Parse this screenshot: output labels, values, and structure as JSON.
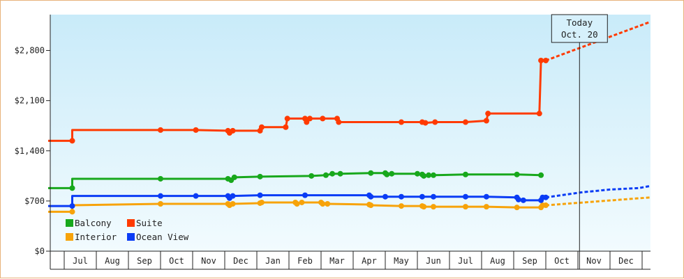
{
  "chart_data": {
    "type": "line",
    "title": "",
    "xlabel": "",
    "ylabel": "",
    "ylim": [
      0,
      3300
    ],
    "y_ticks": [
      0,
      700,
      1400,
      2100,
      2800
    ],
    "y_tick_labels": [
      "$0",
      "$700",
      "$1,400",
      "$2,100",
      "$2,800"
    ],
    "x_tick_labels": [
      "Jul",
      "Aug",
      "Sep",
      "Oct",
      "Nov",
      "Dec",
      "Jan",
      "Feb",
      "Mar",
      "Apr",
      "May",
      "Jun",
      "Jul",
      "Aug",
      "Sep",
      "Oct",
      "Nov",
      "Dec"
    ],
    "x_range_months": [
      0,
      19
    ],
    "grid": false,
    "background": "light-blue gradient",
    "legend_position": "bottom-left",
    "today_marker": {
      "line1": "Today",
      "line2": "Oct. 20",
      "x": 16.55
    },
    "series": [
      {
        "name": "Suite",
        "color": "#ff3a00",
        "points": [
          [
            0,
            1540
          ],
          [
            0.75,
            1540
          ],
          [
            0.75,
            1690
          ],
          [
            3.5,
            1690
          ],
          [
            4.6,
            1690
          ],
          [
            5.6,
            1680
          ],
          [
            5.65,
            1650
          ],
          [
            5.75,
            1680
          ],
          [
            6.6,
            1680
          ],
          [
            6.65,
            1730
          ],
          [
            7.4,
            1730
          ],
          [
            7.45,
            1850
          ],
          [
            8.0,
            1850
          ],
          [
            8.05,
            1800
          ],
          [
            8.15,
            1850
          ],
          [
            8.55,
            1850
          ],
          [
            9.0,
            1850
          ],
          [
            9.05,
            1800
          ],
          [
            11.0,
            1800
          ],
          [
            11.65,
            1800
          ],
          [
            11.75,
            1790
          ],
          [
            12.05,
            1800
          ],
          [
            13.0,
            1800
          ],
          [
            13.65,
            1820
          ],
          [
            13.7,
            1920
          ],
          [
            15.3,
            1920
          ],
          [
            15.35,
            2660
          ],
          [
            15.5,
            2660
          ]
        ],
        "projection": [
          [
            15.5,
            2660
          ],
          [
            19,
            3200
          ]
        ]
      },
      {
        "name": "Balcony",
        "color": "#18a81c",
        "points": [
          [
            0,
            880
          ],
          [
            0.75,
            880
          ],
          [
            0.75,
            1010
          ],
          [
            3.5,
            1010
          ],
          [
            5.6,
            1010
          ],
          [
            5.7,
            990
          ],
          [
            5.8,
            1030
          ],
          [
            6.6,
            1040
          ],
          [
            8.2,
            1050
          ],
          [
            8.65,
            1060
          ],
          [
            8.85,
            1080
          ],
          [
            9.1,
            1080
          ],
          [
            10.05,
            1090
          ],
          [
            10.5,
            1090
          ],
          [
            10.55,
            1070
          ],
          [
            10.7,
            1080
          ],
          [
            11.5,
            1080
          ],
          [
            11.65,
            1070
          ],
          [
            11.7,
            1050
          ],
          [
            11.85,
            1060
          ],
          [
            12.0,
            1060
          ],
          [
            13.0,
            1070
          ],
          [
            14.6,
            1070
          ],
          [
            15.35,
            1060
          ]
        ],
        "projection": []
      },
      {
        "name": "Interior",
        "color": "#f7a30a",
        "points": [
          [
            0,
            550
          ],
          [
            0.75,
            550
          ],
          [
            0.75,
            640
          ],
          [
            3.5,
            660
          ],
          [
            5.6,
            660
          ],
          [
            5.65,
            640
          ],
          [
            5.75,
            660
          ],
          [
            6.6,
            670
          ],
          [
            6.65,
            680
          ],
          [
            7.7,
            680
          ],
          [
            7.75,
            660
          ],
          [
            7.9,
            680
          ],
          [
            8.5,
            680
          ],
          [
            8.55,
            660
          ],
          [
            8.7,
            660
          ],
          [
            10.0,
            650
          ],
          [
            10.05,
            640
          ],
          [
            11.0,
            630
          ],
          [
            11.65,
            630
          ],
          [
            11.7,
            620
          ],
          [
            12.0,
            620
          ],
          [
            13.0,
            620
          ],
          [
            13.65,
            620
          ],
          [
            14.6,
            610
          ],
          [
            15.35,
            610
          ],
          [
            15.4,
            640
          ],
          [
            15.5,
            640
          ]
        ],
        "projection": [
          [
            15.5,
            640
          ],
          [
            19,
            750
          ]
        ]
      },
      {
        "name": "Ocean View",
        "color": "#0a3cf5",
        "points": [
          [
            0,
            630
          ],
          [
            0.75,
            630
          ],
          [
            0.75,
            770
          ],
          [
            3.5,
            770
          ],
          [
            4.6,
            770
          ],
          [
            5.6,
            770
          ],
          [
            5.65,
            740
          ],
          [
            5.75,
            770
          ],
          [
            6.6,
            780
          ],
          [
            8.0,
            780
          ],
          [
            10.0,
            780
          ],
          [
            10.05,
            760
          ],
          [
            10.5,
            760
          ],
          [
            11.0,
            760
          ],
          [
            11.65,
            760
          ],
          [
            12.0,
            760
          ],
          [
            13.0,
            760
          ],
          [
            13.65,
            760
          ],
          [
            14.6,
            750
          ],
          [
            14.65,
            720
          ],
          [
            14.8,
            710
          ],
          [
            15.35,
            710
          ],
          [
            15.4,
            750
          ],
          [
            15.5,
            750
          ]
        ],
        "projection": [
          [
            15.5,
            750
          ],
          [
            16.6,
            820
          ],
          [
            17.5,
            860
          ],
          [
            18.4,
            880
          ],
          [
            19,
            910
          ]
        ]
      }
    ]
  }
}
